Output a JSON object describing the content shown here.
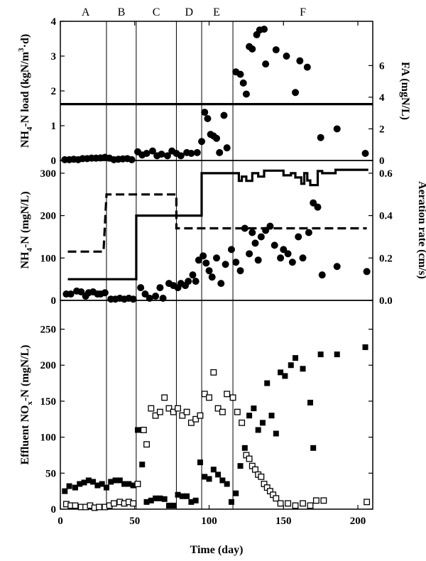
{
  "figure": {
    "xlabel": "Time (day)",
    "xlim": [
      0,
      210
    ],
    "xticks": [
      "0",
      "50",
      "100",
      "150",
      "200"
    ],
    "phase_boundaries": [
      31,
      51,
      78,
      95,
      116
    ],
    "phases": [
      {
        "label": "A",
        "x": 17
      },
      {
        "label": "B",
        "x": 41
      },
      {
        "label": "C",
        "x": 64.5
      },
      {
        "label": "D",
        "x": 86.5
      },
      {
        "label": "E",
        "x": 105
      },
      {
        "label": "F",
        "x": 163
      }
    ]
  },
  "chart_data": [
    {
      "type": "scatter",
      "panel": "top",
      "ylabel_left": "NH4-N load (kgN/m3·d)",
      "ylabel_left_parts": {
        "a": "NH",
        "b": "4",
        "c": "-N load (kgN/m",
        "d": "3",
        "e": "·d)"
      },
      "ylabel_right": "FA (mgN/L)",
      "ylim_left": [
        0,
        4
      ],
      "ylim_right": [
        0,
        8.8
      ],
      "yticks_left": [
        "0",
        "1",
        "2",
        "3",
        "4"
      ],
      "yticks_right": [
        "0",
        "2",
        "4",
        "6"
      ],
      "series": [
        {
          "name": "",
          "style": "line-solid",
          "axis": "left",
          "x": [
            0,
            210
          ],
          "y": [
            1.62,
            1.62
          ]
        },
        {
          "name": "",
          "style": "filled-circle",
          "axis": "right",
          "x": [
            3,
            6,
            9,
            12,
            15,
            18,
            21,
            24,
            27,
            30,
            33,
            36,
            39,
            42,
            45,
            48,
            52,
            55,
            58,
            62,
            65,
            68,
            72,
            75,
            78,
            81,
            85,
            88,
            92,
            95,
            97,
            99,
            101,
            103,
            105,
            107,
            110,
            112,
            118,
            121,
            123,
            125,
            127,
            129,
            132,
            134,
            137,
            138,
            145,
            152,
            158,
            161,
            166,
            175,
            186,
            205
          ],
          "y": [
            0.05,
            0.05,
            0.08,
            0.05,
            0.12,
            0.12,
            0.15,
            0.15,
            0.16,
            0.2,
            0.15,
            0.05,
            0.08,
            0.1,
            0.12,
            0.05,
            0.55,
            0.35,
            0.45,
            0.6,
            0.3,
            0.4,
            0.3,
            0.6,
            0.45,
            0.3,
            0.5,
            0.45,
            0.5,
            1.2,
            3.05,
            2.65,
            1.65,
            1.55,
            1.4,
            0.5,
            2.85,
            0.8,
            5.6,
            5.45,
            4.9,
            4.2,
            7.2,
            7.05,
            7.95,
            8.25,
            8.3,
            6.1,
            7.0,
            6.6,
            4.3,
            6.3,
            5.9,
            1.45,
            2.0,
            0.45
          ]
        }
      ]
    },
    {
      "type": "scatter",
      "panel": "middle",
      "ylabel_left": "NH4-N (mgN/L)",
      "ylabel_left_parts": {
        "a": "NH",
        "b": "4",
        "c": "-N (mgN/L)"
      },
      "ylabel_right": "Aeration rate (cm/s)",
      "ylim_left": [
        0,
        330
      ],
      "ylim_right": [
        0,
        0.66
      ],
      "yticks_left": [
        "0",
        "100",
        "200",
        "300"
      ],
      "yticks_right": [
        "0.0",
        "0.2",
        "0.4",
        "0.6"
      ],
      "series": [
        {
          "name": "",
          "style": "step-solid",
          "axis": "left",
          "x": [
            5,
            51,
            51,
            78,
            78,
            95,
            95,
            116,
            116,
            120,
            120,
            122,
            122,
            125,
            125,
            129,
            129,
            133,
            133,
            137,
            137,
            150,
            150,
            155,
            155,
            158,
            158,
            162,
            162,
            164,
            164,
            166,
            166,
            168,
            168,
            173,
            173,
            176,
            176,
            185,
            185,
            207
          ],
          "y": [
            50,
            50,
            200,
            200,
            200,
            200,
            300,
            300,
            300,
            300,
            282,
            282,
            292,
            292,
            282,
            282,
            300,
            300,
            292,
            292,
            306,
            306,
            295,
            295,
            300,
            300,
            290,
            290,
            275,
            275,
            300,
            300,
            283,
            283,
            272,
            272,
            305,
            305,
            300,
            300,
            308,
            308
          ]
        },
        {
          "name": "",
          "style": "step-dashed",
          "axis": "right",
          "x": [
            5,
            29,
            31,
            78,
            78,
            206
          ],
          "y": [
            0.23,
            0.23,
            0.5,
            0.5,
            0.34,
            0.34
          ]
        },
        {
          "name": "",
          "style": "filled-circle",
          "axis": "left",
          "x": [
            4,
            7,
            11,
            14,
            17,
            19,
            22,
            25,
            27,
            30,
            34,
            37,
            40,
            43,
            46,
            49,
            54,
            57,
            60,
            64,
            67,
            69,
            73,
            76,
            79,
            81,
            84,
            86,
            89,
            91,
            93,
            96,
            98,
            100,
            102,
            105,
            108,
            111,
            115,
            118,
            121,
            124,
            127,
            129,
            131,
            133,
            135,
            138,
            141,
            144,
            148,
            150,
            153,
            156,
            160,
            163,
            167,
            170,
            173,
            176,
            186,
            206
          ],
          "y": [
            15,
            15,
            22,
            20,
            10,
            18,
            20,
            15,
            15,
            18,
            3,
            3,
            5,
            3,
            5,
            3,
            30,
            15,
            5,
            10,
            30,
            5,
            40,
            35,
            30,
            40,
            35,
            45,
            60,
            45,
            95,
            105,
            88,
            70,
            55,
            100,
            40,
            85,
            120,
            90,
            70,
            170,
            110,
            160,
            135,
            95,
            150,
            165,
            175,
            130,
            100,
            120,
            110,
            90,
            150,
            100,
            160,
            230,
            220,
            60,
            80,
            68
          ]
        }
      ]
    },
    {
      "type": "scatter",
      "panel": "bottom",
      "ylabel_left": "Effluent NOx-N (mgN/L)",
      "ylabel_left_parts": {
        "a": "Effluent  NO",
        "b": "x",
        "c": "-N (mgN/L)"
      },
      "ylim": [
        0,
        290
      ],
      "yticks": [
        "0",
        "50",
        "100",
        "150",
        "200",
        "250"
      ],
      "series": [
        {
          "name": "",
          "style": "filled-square",
          "x": [
            3,
            6,
            10,
            13,
            16,
            19,
            22,
            25,
            28,
            31,
            34,
            37,
            40,
            43,
            46,
            49,
            52,
            55,
            58,
            61,
            64,
            67,
            70,
            73,
            76,
            79,
            82,
            85,
            88,
            91,
            94,
            97,
            100,
            103,
            106,
            109,
            112,
            115,
            118,
            121,
            124,
            127,
            130,
            133,
            136,
            139,
            142,
            145,
            148,
            151,
            155,
            158,
            163,
            168,
            170,
            175,
            186,
            205
          ],
          "y": [
            25,
            32,
            30,
            35,
            37,
            40,
            38,
            33,
            35,
            30,
            38,
            40,
            40,
            35,
            35,
            33,
            110,
            62,
            10,
            12,
            15,
            15,
            14,
            5,
            5,
            20,
            18,
            18,
            10,
            12,
            65,
            45,
            42,
            55,
            48,
            40,
            35,
            10,
            22,
            60,
            85,
            130,
            140,
            110,
            120,
            175,
            130,
            105,
            190,
            185,
            200,
            210,
            195,
            148,
            85,
            215,
            215,
            225
          ]
        },
        {
          "name": "",
          "style": "open-square",
          "x": [
            4,
            7,
            10,
            14,
            17,
            20,
            23,
            26,
            30,
            33,
            36,
            40,
            43,
            46,
            49,
            52,
            56,
            58,
            61,
            64,
            67,
            70,
            73,
            76,
            79,
            82,
            85,
            88,
            91,
            94,
            97,
            100,
            103,
            106,
            109,
            112,
            116,
            119,
            122,
            125,
            127,
            129,
            131,
            133,
            135,
            137,
            139,
            141,
            143,
            145,
            148,
            153,
            158,
            163,
            168,
            172,
            177,
            206
          ],
          "y": [
            7,
            5,
            5,
            3,
            3,
            5,
            2,
            3,
            3,
            5,
            8,
            10,
            8,
            10,
            8,
            35,
            110,
            90,
            140,
            130,
            135,
            155,
            140,
            135,
            140,
            130,
            135,
            120,
            125,
            130,
            160,
            155,
            190,
            140,
            135,
            160,
            155,
            135,
            120,
            75,
            70,
            60,
            55,
            48,
            45,
            35,
            30,
            25,
            20,
            15,
            8,
            8,
            5,
            8,
            5,
            12,
            12,
            10
          ]
        }
      ]
    }
  ]
}
